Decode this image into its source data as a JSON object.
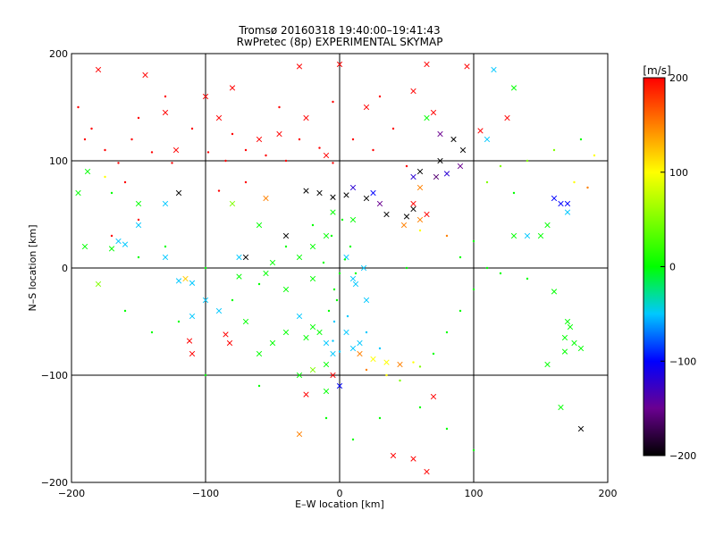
{
  "chart_data": {
    "type": "scatter",
    "title": "Tromsø 20160318 19:40:00–19:41:43",
    "subtitle": "RwPretec (8p) EXPERIMENTAL SKYMAP",
    "xlabel": "E–W location [km]",
    "ylabel": "N–S location [km]",
    "xlim": [
      -200,
      200
    ],
    "ylim": [
      -200,
      200
    ],
    "xticks": [
      -200,
      -100,
      0,
      100,
      200
    ],
    "yticks": [
      -200,
      -100,
      0,
      100,
      200
    ],
    "xtick_labels": [
      "−200",
      "−100",
      "0",
      "100",
      "200"
    ],
    "ytick_labels": [
      "−200",
      "−100",
      "0",
      "100",
      "200"
    ],
    "grid": true,
    "colorbar": {
      "label": "[m/s]",
      "range": [
        -200,
        200
      ],
      "ticks": [
        200,
        100,
        0,
        -100,
        -200
      ],
      "tick_labels": [
        "200",
        "100",
        "0",
        "−100",
        "−200"
      ],
      "stops": [
        {
          "value": -200,
          "color": "#000000"
        },
        {
          "value": -150,
          "color": "#6a0090"
        },
        {
          "value": -100,
          "color": "#0000ff"
        },
        {
          "value": -50,
          "color": "#00c8ff"
        },
        {
          "value": 0,
          "color": "#00ff00"
        },
        {
          "value": 100,
          "color": "#ffff00"
        },
        {
          "value": 150,
          "color": "#ff8000"
        },
        {
          "value": 200,
          "color": "#ff0000"
        }
      ]
    },
    "series": [
      {
        "marker": "cross",
        "points": [
          [
            -180,
            185,
            200
          ],
          [
            -145,
            180,
            200
          ],
          [
            -130,
            145,
            200
          ],
          [
            -122,
            110,
            200
          ],
          [
            -100,
            160,
            200
          ],
          [
            -90,
            140,
            200
          ],
          [
            -80,
            168,
            200
          ],
          [
            -60,
            120,
            200
          ],
          [
            -45,
            125,
            200
          ],
          [
            -30,
            188,
            200
          ],
          [
            -25,
            140,
            200
          ],
          [
            -10,
            105,
            200
          ],
          [
            0,
            190,
            200
          ],
          [
            20,
            150,
            200
          ],
          [
            55,
            165,
            200
          ],
          [
            65,
            190,
            200
          ],
          [
            95,
            188,
            200
          ],
          [
            70,
            145,
            200
          ],
          [
            105,
            128,
            200
          ],
          [
            125,
            140,
            200
          ],
          [
            -112,
            -68,
            200
          ],
          [
            -110,
            -80,
            200
          ],
          [
            -85,
            -62,
            200
          ],
          [
            -82,
            -70,
            200
          ],
          [
            -25,
            -118,
            200
          ],
          [
            -5,
            -100,
            200
          ],
          [
            40,
            -175,
            200
          ],
          [
            55,
            -178,
            200
          ],
          [
            65,
            -190,
            200
          ],
          [
            70,
            -120,
            200
          ],
          [
            65,
            50,
            200
          ],
          [
            55,
            60,
            200
          ],
          [
            48,
            40,
            150
          ],
          [
            60,
            45,
            150
          ],
          [
            60,
            75,
            150
          ],
          [
            25,
            -85,
            100
          ],
          [
            35,
            -88,
            100
          ],
          [
            45,
            -90,
            150
          ],
          [
            15,
            -80,
            150
          ],
          [
            -5,
            52,
            0
          ],
          [
            10,
            45,
            0
          ],
          [
            -20,
            20,
            0
          ],
          [
            -30,
            10,
            0
          ],
          [
            -50,
            5,
            0
          ],
          [
            -165,
            25,
            -50
          ],
          [
            -160,
            22,
            -50
          ],
          [
            -120,
            -12,
            -50
          ],
          [
            -110,
            -14,
            -50
          ],
          [
            -90,
            -40,
            -50
          ],
          [
            -75,
            10,
            -50
          ],
          [
            -55,
            -5,
            0
          ],
          [
            -40,
            -20,
            0
          ],
          [
            -20,
            -10,
            0
          ],
          [
            -10,
            30,
            0
          ],
          [
            5,
            10,
            -50
          ],
          [
            10,
            -10,
            -50
          ],
          [
            12,
            -15,
            -50
          ],
          [
            18,
            0,
            -50
          ],
          [
            20,
            -30,
            -50
          ],
          [
            5,
            -60,
            -50
          ],
          [
            -10,
            -70,
            -50
          ],
          [
            -5,
            -80,
            -50
          ],
          [
            10,
            -75,
            -50
          ],
          [
            15,
            -70,
            -50
          ],
          [
            -130,
            10,
            -50
          ],
          [
            -150,
            40,
            -50
          ],
          [
            -170,
            18,
            0
          ],
          [
            -195,
            70,
            0
          ],
          [
            -188,
            90,
            0
          ],
          [
            -190,
            20,
            0
          ],
          [
            -180,
            -15,
            50
          ],
          [
            -115,
            -10,
            120
          ],
          [
            115,
            185,
            -50
          ],
          [
            130,
            168,
            0
          ],
          [
            110,
            120,
            -50
          ],
          [
            65,
            140,
            0
          ],
          [
            75,
            125,
            -150
          ],
          [
            85,
            120,
            -200
          ],
          [
            92,
            110,
            -200
          ],
          [
            75,
            100,
            -200
          ],
          [
            60,
            90,
            -200
          ],
          [
            55,
            85,
            -120
          ],
          [
            72,
            85,
            -160
          ],
          [
            80,
            88,
            -120
          ],
          [
            90,
            95,
            -150
          ],
          [
            50,
            48,
            -200
          ],
          [
            55,
            55,
            -200
          ],
          [
            35,
            50,
            -200
          ],
          [
            30,
            60,
            -150
          ],
          [
            20,
            65,
            -200
          ],
          [
            5,
            68,
            -200
          ],
          [
            -5,
            66,
            -200
          ],
          [
            -15,
            70,
            -200
          ],
          [
            -25,
            72,
            -200
          ],
          [
            10,
            75,
            -120
          ],
          [
            25,
            70,
            -100
          ],
          [
            160,
            65,
            -100
          ],
          [
            165,
            60,
            -100
          ],
          [
            170,
            60,
            -100
          ],
          [
            170,
            52,
            -50
          ],
          [
            155,
            40,
            0
          ],
          [
            150,
            30,
            0
          ],
          [
            160,
            -22,
            0
          ],
          [
            170,
            -50,
            0
          ],
          [
            172,
            -55,
            0
          ],
          [
            168,
            -65,
            0
          ],
          [
            175,
            -70,
            0
          ],
          [
            180,
            -75,
            0
          ],
          [
            168,
            -78,
            0
          ],
          [
            155,
            -90,
            0
          ],
          [
            165,
            -130,
            0
          ],
          [
            180,
            -150,
            -200
          ],
          [
            130,
            30,
            0
          ],
          [
            140,
            30,
            -50
          ],
          [
            -130,
            60,
            -50
          ],
          [
            -110,
            -45,
            -50
          ],
          [
            -100,
            -30,
            -50
          ],
          [
            -120,
            70,
            -200
          ],
          [
            -150,
            60,
            0
          ],
          [
            -75,
            -8,
            0
          ],
          [
            -70,
            10,
            -200
          ],
          [
            -40,
            30,
            -200
          ],
          [
            -30,
            -45,
            -50
          ],
          [
            -40,
            -60,
            0
          ],
          [
            -50,
            -70,
            0
          ],
          [
            -60,
            -80,
            0
          ],
          [
            -25,
            -65,
            0
          ],
          [
            -15,
            -60,
            0
          ],
          [
            -20,
            -55,
            0
          ],
          [
            -10,
            -90,
            0
          ],
          [
            -20,
            -95,
            50
          ],
          [
            -30,
            -100,
            0
          ],
          [
            0,
            -110,
            -100
          ],
          [
            -10,
            -115,
            0
          ],
          [
            -30,
            -155,
            150
          ],
          [
            -55,
            65,
            150
          ],
          [
            -80,
            60,
            50
          ],
          [
            -60,
            40,
            0
          ],
          [
            -70,
            -50,
            0
          ]
        ]
      },
      {
        "marker": "dot",
        "points": [
          [
            -195,
            150,
            200
          ],
          [
            -185,
            130,
            200
          ],
          [
            -175,
            110,
            200
          ],
          [
            -165,
            98,
            200
          ],
          [
            -155,
            120,
            200
          ],
          [
            -140,
            108,
            200
          ],
          [
            -125,
            98,
            200
          ],
          [
            -110,
            130,
            200
          ],
          [
            -98,
            108,
            200
          ],
          [
            -85,
            100,
            200
          ],
          [
            -70,
            110,
            200
          ],
          [
            -55,
            105,
            200
          ],
          [
            -40,
            100,
            200
          ],
          [
            -30,
            120,
            200
          ],
          [
            -15,
            112,
            200
          ],
          [
            -5,
            98,
            200
          ],
          [
            10,
            120,
            200
          ],
          [
            25,
            110,
            200
          ],
          [
            40,
            130,
            200
          ],
          [
            30,
            160,
            200
          ],
          [
            -160,
            80,
            200
          ],
          [
            -150,
            45,
            200
          ],
          [
            -170,
            30,
            200
          ],
          [
            -90,
            72,
            200
          ],
          [
            -70,
            80,
            200
          ],
          [
            50,
            95,
            200
          ],
          [
            80,
            30,
            150
          ],
          [
            60,
            35,
            100
          ],
          [
            -8,
            -40,
            0
          ],
          [
            -4,
            -20,
            0
          ],
          [
            0,
            -5,
            0
          ],
          [
            4,
            8,
            0
          ],
          [
            8,
            20,
            0
          ],
          [
            -6,
            30,
            0
          ],
          [
            2,
            45,
            0
          ],
          [
            -12,
            5,
            0
          ],
          [
            12,
            -5,
            0
          ],
          [
            -2,
            -30,
            0
          ],
          [
            6,
            -45,
            -50
          ],
          [
            -4,
            -50,
            -50
          ],
          [
            35,
            -100,
            100
          ],
          [
            45,
            -105,
            50
          ],
          [
            55,
            -88,
            100
          ],
          [
            60,
            -92,
            50
          ],
          [
            20,
            -95,
            150
          ],
          [
            -5,
            -68,
            -50
          ],
          [
            0,
            -78,
            -50
          ],
          [
            20,
            -60,
            -50
          ],
          [
            30,
            -75,
            -50
          ],
          [
            -100,
            0,
            0
          ],
          [
            -120,
            -50,
            0
          ],
          [
            -80,
            -30,
            0
          ],
          [
            -60,
            -15,
            0
          ],
          [
            -40,
            20,
            0
          ],
          [
            -20,
            40,
            0
          ],
          [
            110,
            0,
            0
          ],
          [
            100,
            -20,
            0
          ],
          [
            90,
            -40,
            0
          ],
          [
            80,
            -60,
            0
          ],
          [
            70,
            -80,
            0
          ],
          [
            120,
            -5,
            0
          ],
          [
            140,
            -10,
            0
          ],
          [
            100,
            25,
            0
          ],
          [
            90,
            10,
            0
          ],
          [
            50,
            0,
            0
          ],
          [
            -190,
            120,
            200
          ],
          [
            -5,
            155,
            200
          ],
          [
            -45,
            150,
            200
          ],
          [
            -80,
            125,
            200
          ],
          [
            -130,
            160,
            200
          ],
          [
            -150,
            140,
            200
          ],
          [
            -170,
            70,
            0
          ],
          [
            -175,
            85,
            100
          ],
          [
            120,
            95,
            50
          ],
          [
            110,
            80,
            50
          ],
          [
            130,
            70,
            0
          ],
          [
            140,
            100,
            50
          ],
          [
            160,
            110,
            50
          ],
          [
            180,
            120,
            0
          ],
          [
            190,
            105,
            100
          ],
          [
            175,
            80,
            100
          ],
          [
            185,
            75,
            150
          ],
          [
            60,
            -130,
            0
          ],
          [
            80,
            -150,
            0
          ],
          [
            100,
            -170,
            0
          ],
          [
            30,
            -140,
            0
          ],
          [
            10,
            -160,
            0
          ],
          [
            -10,
            -140,
            0
          ],
          [
            -60,
            -110,
            0
          ],
          [
            -100,
            -100,
            0
          ],
          [
            -140,
            -60,
            0
          ],
          [
            -160,
            -40,
            0
          ],
          [
            -150,
            10,
            0
          ],
          [
            -130,
            20,
            0
          ]
        ]
      }
    ]
  }
}
